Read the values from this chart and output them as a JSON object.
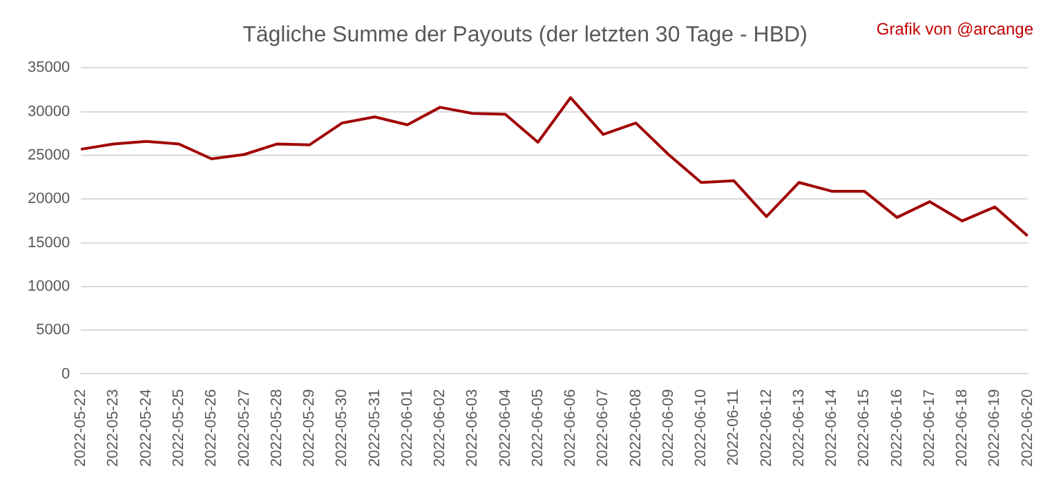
{
  "chart_data": {
    "type": "line",
    "title": "Tägliche Summe der Payouts (der letzten 30 Tage - HBD)",
    "annotations": [
      "Grafik von @arcange"
    ],
    "categories": [
      "2022-05-22",
      "2022-05-23",
      "2022-05-24",
      "2022-05-25",
      "2022-05-26",
      "2022-05-27",
      "2022-05-28",
      "2022-05-29",
      "2022-05-30",
      "2022-05-31",
      "2022-06-01",
      "2022-06-02",
      "2022-06-03",
      "2022-06-04",
      "2022-06-05",
      "2022-06-06",
      "2022-06-07",
      "2022-06-08",
      "2022-06-09",
      "2022-06-10",
      "2022-06-11",
      "2022-06-12",
      "2022-06-13",
      "2022-06-14",
      "2022-06-15",
      "2022-06-16",
      "2022-06-17",
      "2022-06-18",
      "2022-06-19",
      "2022-06-20"
    ],
    "series": [
      {
        "color": "#a00000",
        "values": [
          25700,
          26300,
          26600,
          26300,
          24600,
          25100,
          26300,
          26200,
          28700,
          29400,
          28500,
          30500,
          29800,
          29700,
          26500,
          31600,
          27400,
          28700,
          25100,
          21900,
          22100,
          18000,
          21900,
          20900,
          20900,
          17900,
          19700,
          17500,
          19100,
          15800
        ]
      }
    ],
    "ylim": [
      0,
      35000
    ],
    "yticks": [
      0,
      5000,
      10000,
      15000,
      20000,
      25000,
      30000,
      35000
    ],
    "grid": "y",
    "legend": false,
    "marker": "none",
    "line_style": "solid"
  }
}
